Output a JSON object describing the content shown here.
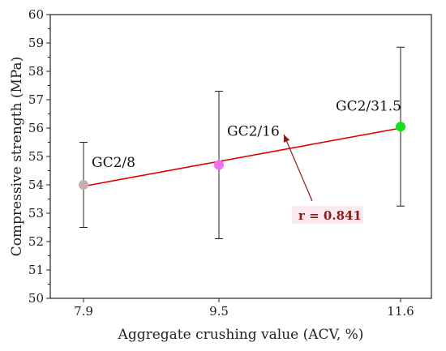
{
  "chart_data": {
    "type": "scatter",
    "title": "",
    "xlabel": "Aggregate crushing value (ACV, %)",
    "ylabel": "Compressive strength (MPa)",
    "ylim": [
      50,
      60
    ],
    "y_ticks": [
      "50",
      "51",
      "52",
      "53",
      "54",
      "55",
      "56",
      "57",
      "58",
      "59",
      "60"
    ],
    "x_ticks": [
      "7.9",
      "9.5",
      "11.6"
    ],
    "grid": false,
    "points": [
      {
        "label": "GC2/8",
        "x": 7.9,
        "y": 54.0,
        "err_low": 52.5,
        "err_high": 55.5,
        "color": "#c4aeb2"
      },
      {
        "label": "GC2/16",
        "x": 9.5,
        "y": 54.7,
        "err_low": 52.1,
        "err_high": 57.3,
        "color": "#ee72ee"
      },
      {
        "label": "GC2/31.5",
        "x": 11.6,
        "y": 56.05,
        "err_low": 53.25,
        "err_high": 58.85,
        "color": "#16e016"
      }
    ],
    "fit_line": {
      "x": [
        7.9,
        11.6
      ],
      "y": [
        53.95,
        56.0
      ],
      "color": "#e00000"
    },
    "annotation": {
      "text": "r = 0.841",
      "color": "#8B1a1a",
      "background": "#fbeaf0"
    }
  }
}
